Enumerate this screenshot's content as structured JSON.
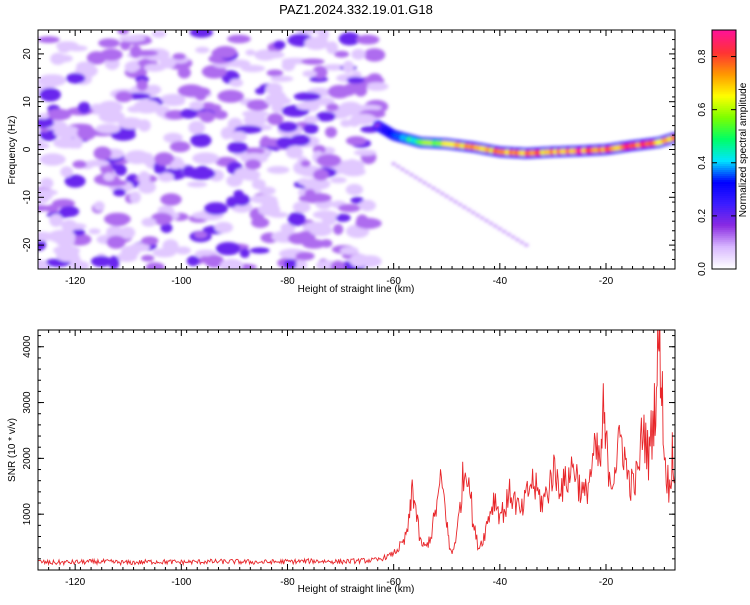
{
  "title": "PAZ1.2024.332.19.01.G18",
  "chart_data": [
    {
      "type": "heatmap",
      "xlabel": "Height of straight line (km)",
      "ylabel": "Frequency (Hz)",
      "xlim": [
        -127,
        -7
      ],
      "ylim": [
        -25,
        25
      ],
      "xticks": [
        -120,
        -100,
        -80,
        -60,
        -40,
        -20
      ],
      "yticks": [
        -20,
        -10,
        0,
        10,
        20
      ],
      "colorbar": {
        "label": "Normalized spectral amplitude",
        "range": [
          0.0,
          0.9
        ],
        "ticks": [
          0.0,
          0.2,
          0.4,
          0.6,
          0.8
        ],
        "colormap": [
          "#ffffff",
          "#d8b8ff",
          "#8a2be2",
          "#3b1cff",
          "#0000ff",
          "#00e5ff",
          "#00ff66",
          "#7cff00",
          "#ffff00",
          "#ff9900",
          "#ff3333",
          "#ff1493"
        ]
      },
      "noise_region": {
        "x_range": [
          -127,
          -63
        ],
        "y_range": [
          -25,
          25
        ],
        "amplitude": [
          0.0,
          0.15
        ]
      },
      "signal_ridge": {
        "x": [
          -63,
          -60,
          -55,
          -50,
          -45,
          -40,
          -35,
          -30,
          -25,
          -20,
          -15,
          -10,
          -7
        ],
        "y": [
          5,
          3,
          1.5,
          1.2,
          0.5,
          -0.5,
          -0.8,
          -0.5,
          -0.3,
          0.0,
          0.8,
          1.5,
          2.5
        ],
        "amplitude": [
          0.2,
          0.4,
          0.6,
          0.7,
          0.8,
          0.85,
          0.85,
          0.85,
          0.9,
          0.85,
          0.9,
          0.85,
          0.8
        ]
      },
      "secondary_ridge": {
        "x": [
          -60,
          -35
        ],
        "y": [
          -3,
          -20
        ],
        "amplitude": 0.1
      }
    },
    {
      "type": "line",
      "xlabel": "Height of straight line (km)",
      "ylabel": "SNR (10 * v/v)",
      "xlim": [
        -127,
        -7
      ],
      "ylim": [
        0,
        4300
      ],
      "xticks": [
        -120,
        -100,
        -80,
        -60,
        -40,
        -20
      ],
      "yticks": [
        1000,
        2000,
        3000,
        4000
      ],
      "color": "#e8262a",
      "series": [
        {
          "x": [
            -127,
            -125,
            -120,
            -115,
            -110,
            -105,
            -100,
            -95,
            -90,
            -85,
            -80,
            -75,
            -70,
            -65,
            -63,
            -61,
            -60,
            -59,
            -58,
            -57,
            -56.5,
            -56,
            -55,
            -54,
            -53,
            -52,
            -51,
            -50,
            -49.5,
            -49,
            -48,
            -47,
            -46,
            -45,
            -44,
            -43,
            -42,
            -41,
            -40,
            -39,
            -38,
            -37,
            -36,
            -35,
            -34,
            -33,
            -32,
            -31,
            -30,
            -29,
            -28,
            -27,
            -26,
            -25,
            -24,
            -23,
            -22,
            -21,
            -20.5,
            -20,
            -19,
            -18,
            -17,
            -16,
            -15,
            -14,
            -13,
            -12,
            -11,
            -10.5,
            -10,
            -9.5,
            -9,
            -8,
            -7.5,
            -7
          ],
          "y": [
            150,
            130,
            140,
            150,
            130,
            150,
            140,
            150,
            150,
            140,
            150,
            160,
            150,
            170,
            180,
            250,
            300,
            400,
            500,
            900,
            1500,
            1200,
            500,
            400,
            600,
            1100,
            1600,
            900,
            400,
            300,
            700,
            1600,
            1900,
            800,
            400,
            600,
            1000,
            1300,
            1000,
            1100,
            1400,
            1200,
            1000,
            1300,
            1600,
            1400,
            1200,
            1400,
            1800,
            1600,
            1500,
            1700,
            1900,
            1500,
            1300,
            1700,
            2100,
            1900,
            2800,
            2200,
            1600,
            2000,
            2400,
            1700,
            1500,
            1700,
            2600,
            2000,
            2800,
            3200,
            4300,
            3400,
            2000,
            1400,
            2200,
            1700
          ]
        }
      ]
    }
  ]
}
